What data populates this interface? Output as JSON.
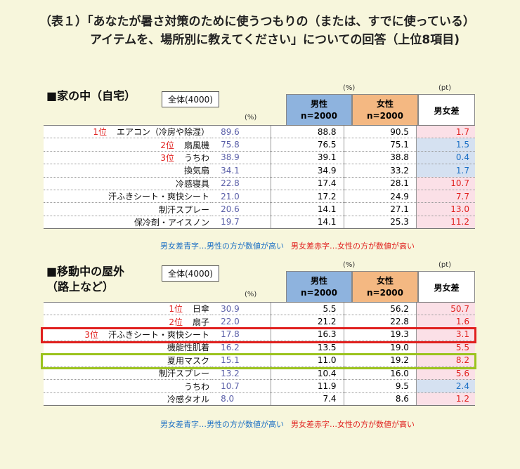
{
  "title": {
    "line1": "（表１）「あなたが暑さ対策のために使うつもりの（または、すでに使っている）",
    "line2": "アイテムを、場所別に教えてください」についての回答（上位8項目)"
  },
  "colors": {
    "male_header": "#8eb3de",
    "female_header": "#f4b882",
    "red_text": "#e0201e",
    "blue_text": "#1b6fc4",
    "red_bg": "#fbe0e7",
    "blue_bg": "#d5e1f1",
    "highlight_red": "#e0201e",
    "highlight_green": "#9bc31d"
  },
  "chart_data": [
    {
      "type": "table",
      "title": "■家の中（自宅）",
      "total_label": "全体(4000)",
      "unit_total": "(%)",
      "unit_gender": "(%)",
      "unit_diff": "(pt)",
      "headers": {
        "male": "男性",
        "female": "女性",
        "n": "n=2000",
        "diff": "男女差"
      },
      "rows": [
        {
          "rank": "1位",
          "item": "エアコン（冷房や除湿）",
          "total": "89.6",
          "male": "88.8",
          "female": "90.5",
          "diff": "1.7",
          "diff_color": "red"
        },
        {
          "rank": "2位",
          "item": "扇風機",
          "total": "75.8",
          "male": "76.5",
          "female": "75.1",
          "diff": "1.5",
          "diff_color": "blue"
        },
        {
          "rank": "3位",
          "item": "うちわ",
          "total": "38.9",
          "male": "39.1",
          "female": "38.8",
          "diff": "0.4",
          "diff_color": "blue"
        },
        {
          "rank": "",
          "item": "換気扇",
          "total": "34.1",
          "male": "34.9",
          "female": "33.2",
          "diff": "1.7",
          "diff_color": "blue"
        },
        {
          "rank": "",
          "item": "冷感寝具",
          "total": "22.8",
          "male": "17.4",
          "female": "28.1",
          "diff": "10.7",
          "diff_color": "red"
        },
        {
          "rank": "",
          "item": "汗ふきシート・爽快シート",
          "total": "21.0",
          "male": "17.2",
          "female": "24.9",
          "diff": "7.7",
          "diff_color": "red"
        },
        {
          "rank": "",
          "item": "制汗スプレー",
          "total": "20.6",
          "male": "14.1",
          "female": "27.1",
          "diff": "13.0",
          "diff_color": "red"
        },
        {
          "rank": "",
          "item": "保冷剤・アイスノン",
          "total": "19.7",
          "male": "14.1",
          "female": "25.3",
          "diff": "11.2",
          "diff_color": "red"
        }
      ],
      "legend_blue": "男女差青字…男性の方が数値が高い",
      "legend_red": "男女差赤字…女性の方が数値が高い"
    },
    {
      "type": "table",
      "title_line1": "■移動中の屋外",
      "title_line2": "（路上など）",
      "total_label": "全体(4000)",
      "unit_total": "(%)",
      "unit_gender": "(%)",
      "unit_diff": "(pt)",
      "headers": {
        "male": "男性",
        "female": "女性",
        "n": "n=2000",
        "diff": "男女差"
      },
      "rows": [
        {
          "rank": "1位",
          "item": "日傘",
          "total": "30.9",
          "male": "5.5",
          "female": "56.2",
          "diff": "50.7",
          "diff_color": "red"
        },
        {
          "rank": "2位",
          "item": "扇子",
          "total": "22.0",
          "male": "21.2",
          "female": "22.8",
          "diff": "1.6",
          "diff_color": "red"
        },
        {
          "rank": "3位",
          "item": "汗ふきシート・爽快シート",
          "total": "17.8",
          "male": "16.3",
          "female": "19.3",
          "diff": "3.1",
          "diff_color": "red"
        },
        {
          "rank": "",
          "item": "機能性肌着",
          "total": "16.2",
          "male": "13.5",
          "female": "19.0",
          "diff": "5.5",
          "diff_color": "red"
        },
        {
          "rank": "",
          "item": "夏用マスク",
          "total": "15.1",
          "male": "11.0",
          "female": "19.2",
          "diff": "8.2",
          "diff_color": "red"
        },
        {
          "rank": "",
          "item": "制汗スプレー",
          "total": "13.2",
          "male": "10.4",
          "female": "16.0",
          "diff": "5.6",
          "diff_color": "red"
        },
        {
          "rank": "",
          "item": "うちわ",
          "total": "10.7",
          "male": "11.9",
          "female": "9.5",
          "diff": "2.4",
          "diff_color": "blue"
        },
        {
          "rank": "",
          "item": "冷感タオル",
          "total": "8.0",
          "male": "7.4",
          "female": "8.6",
          "diff": "1.2",
          "diff_color": "red"
        }
      ],
      "legend_blue": "男女差青字…男性の方が数値が高い",
      "legend_red": "男女差赤字…女性の方が数値が高い"
    }
  ]
}
